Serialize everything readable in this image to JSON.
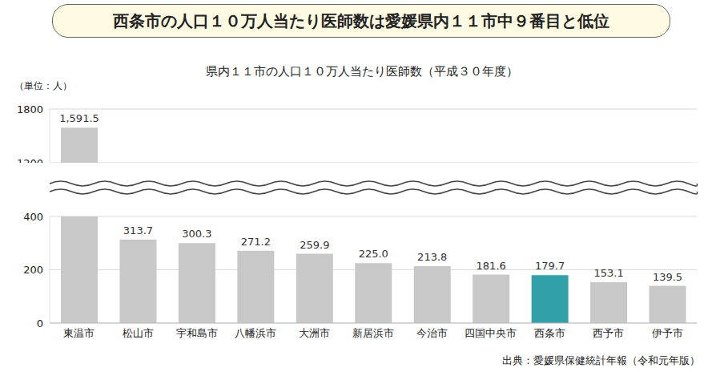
{
  "chart_data": {
    "type": "bar",
    "title": "西条市の人口１０万人当たり医師数は愛媛県内１１市中９番目と低位",
    "subtitle": "県内１１市の人口１０万人当たり医師数（平成３０年度）",
    "y_label": "（単位：人）",
    "source": "出典：愛媛県保健統計年報（令和元年版）",
    "categories": [
      "東温市",
      "松山市",
      "宇和島市",
      "八幡浜市",
      "大洲市",
      "新居浜市",
      "今治市",
      "四国中央市",
      "西条市",
      "西予市",
      "伊予市"
    ],
    "values": [
      1591.5,
      313.7,
      300.3,
      271.2,
      259.9,
      225.0,
      213.8,
      181.6,
      179.7,
      153.1,
      139.5
    ],
    "value_labels": [
      "1,591.5",
      "313.7",
      "300.3",
      "271.2",
      "259.9",
      "225.0",
      "213.8",
      "181.6",
      "179.7",
      "153.1",
      "139.5"
    ],
    "colors": [
      "#c8c8c8",
      "#c8c8c8",
      "#c8c8c8",
      "#c8c8c8",
      "#c8c8c8",
      "#c8c8c8",
      "#c8c8c8",
      "#c8c8c8",
      "#31a0a8",
      "#c8c8c8",
      "#c8c8c8"
    ],
    "ylim": [
      0,
      1800
    ],
    "yticks": [
      0,
      200,
      400,
      1200,
      1800
    ],
    "y_break": [
      400,
      1200
    ],
    "grid": true,
    "data_labels": true
  }
}
